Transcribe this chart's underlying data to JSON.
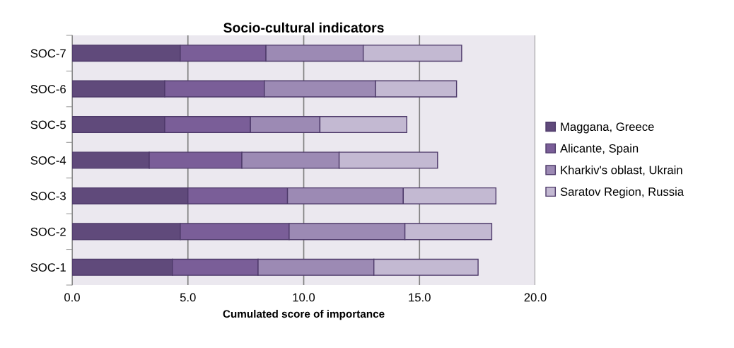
{
  "chart_data": {
    "type": "bar",
    "orientation": "horizontal",
    "stacked": true,
    "title": "Socio-cultural indicators",
    "xlabel": "Cumulated score of importance",
    "categories": [
      "SOC-7",
      "SOC-6",
      "SOC-5",
      "SOC-4",
      "SOC-3",
      "SOC-2",
      "SOC-1"
    ],
    "series": [
      {
        "name": "Maggana, Greece",
        "color": "#604a7b",
        "values": [
          4.67,
          4.0,
          4.0,
          3.33,
          5.0,
          4.67,
          4.33
        ]
      },
      {
        "name": "Alicante, Spain",
        "color": "#7a5e98",
        "values": [
          3.7,
          4.3,
          3.7,
          4.0,
          4.3,
          4.7,
          3.7
        ]
      },
      {
        "name": "Kharkiv's oblast, Ukrain",
        "color": "#9c8ab4",
        "values": [
          4.2,
          4.8,
          3.0,
          4.2,
          5.0,
          5.0,
          5.0
        ]
      },
      {
        "name": "Saratov Region, Russia",
        "color": "#c3b9d2",
        "values": [
          4.25,
          3.5,
          3.75,
          4.25,
          4.0,
          3.75,
          4.5
        ]
      }
    ],
    "xlim": [
      0,
      20
    ],
    "xticks": [
      {
        "value": 0,
        "label": "0.0"
      },
      {
        "value": 5,
        "label": "5.0"
      },
      {
        "value": 10,
        "label": "10.0"
      },
      {
        "value": 15,
        "label": "15.0"
      },
      {
        "value": 20,
        "label": "20.0"
      }
    ],
    "grid": "x",
    "legend": "right"
  }
}
